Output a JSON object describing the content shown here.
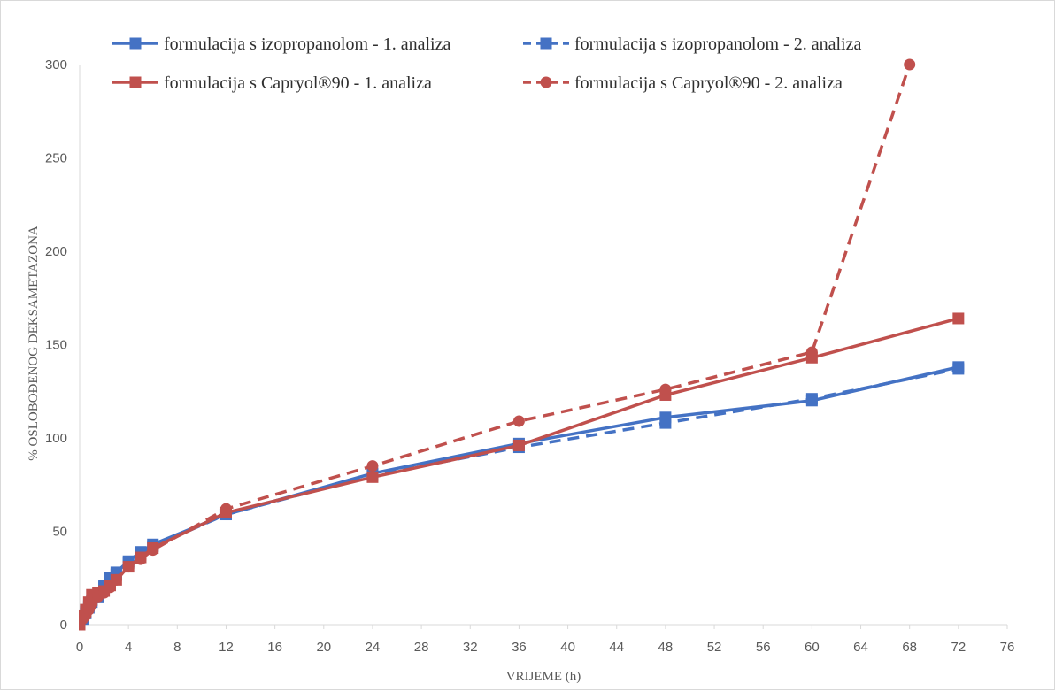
{
  "chart_data": {
    "type": "line",
    "xlabel": "VRIJEME (h)",
    "ylabel": "% OSLOBOĐENOG DEKSAMETAZONA",
    "xlim": [
      0,
      76
    ],
    "ylim": [
      0,
      300
    ],
    "xticks": [
      0,
      4,
      8,
      12,
      16,
      20,
      24,
      28,
      32,
      36,
      40,
      44,
      48,
      52,
      56,
      60,
      64,
      68,
      72,
      76
    ],
    "yticks": [
      0,
      50,
      100,
      150,
      200,
      250,
      300
    ],
    "grid": false,
    "legend_position": "top",
    "series": [
      {
        "name": "formulacija s izopropanolom - 1. analiza",
        "color": "#4472c4",
        "line_style": "solid",
        "marker": "square",
        "x": [
          0,
          0.25,
          0.5,
          0.75,
          1,
          1.5,
          2,
          2.5,
          3,
          4,
          5,
          6,
          12,
          24,
          36,
          48,
          60,
          72
        ],
        "y": [
          0,
          4,
          7,
          10,
          13,
          16,
          21,
          25,
          28,
          34,
          39,
          43,
          59,
          81,
          97,
          111,
          120,
          138
        ]
      },
      {
        "name": "formulacija s izopropanolom - 2. analiza",
        "color": "#4472c4",
        "line_style": "dashed",
        "marker": "square",
        "x": [
          0,
          0.25,
          0.5,
          0.75,
          1,
          1.5,
          2,
          2.5,
          3,
          4,
          5,
          6,
          12,
          24,
          36,
          48,
          60,
          72
        ],
        "y": [
          0,
          3,
          6,
          9,
          12,
          15,
          20,
          24,
          27,
          33,
          38,
          42,
          59,
          80,
          95,
          108,
          121,
          137
        ]
      },
      {
        "name": "formulacija s Capryol®90 - 1. analiza",
        "color": "#c0504d",
        "line_style": "solid",
        "marker": "square",
        "x": [
          0,
          0.25,
          0.5,
          0.75,
          1,
          1.5,
          2,
          2.5,
          3,
          4,
          5,
          6,
          12,
          24,
          36,
          48,
          60,
          72
        ],
        "y": [
          0,
          5,
          8,
          12,
          16,
          17,
          18,
          21,
          24,
          31,
          36,
          41,
          60,
          79,
          96,
          123,
          143,
          164
        ]
      },
      {
        "name": "formulacija s Capryol®90 - 2. analiza",
        "color": "#c0504d",
        "line_style": "dashed",
        "marker": "circle",
        "x": [
          0,
          0.25,
          0.5,
          0.75,
          1,
          1.5,
          2,
          2.5,
          3,
          4,
          5,
          6,
          12,
          24,
          36,
          48,
          60,
          68
        ],
        "y": [
          0,
          3,
          5,
          8,
          11,
          15,
          17,
          20,
          24,
          31,
          35,
          40,
          62,
          85,
          109,
          126,
          146,
          300
        ]
      }
    ]
  }
}
